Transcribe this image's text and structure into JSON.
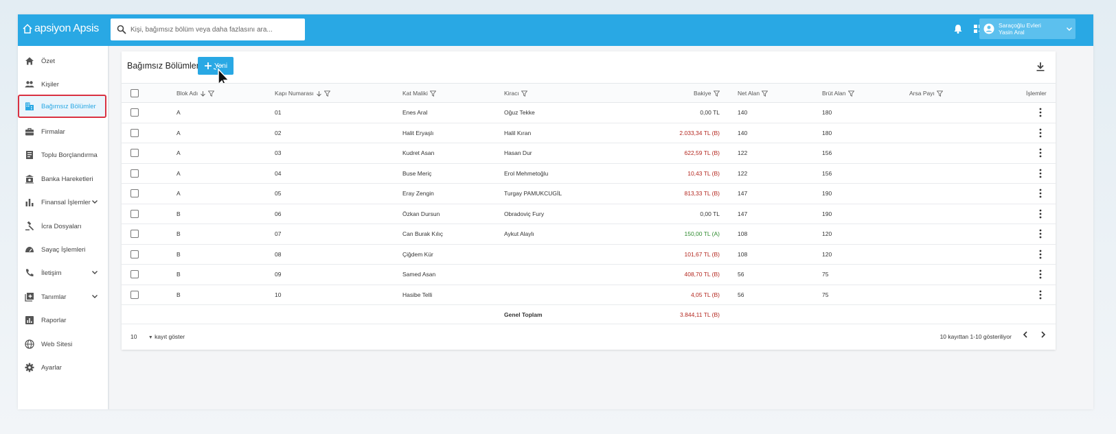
{
  "header": {
    "logo": "apsiyon Apsis",
    "search_placeholder": "Kişi, bağımsız bölüm veya daha fazlasını ara...",
    "user": {
      "site": "Saraçoğlu Evleri",
      "name": "Yasin Aral"
    }
  },
  "sidebar": {
    "items": [
      {
        "label": "Özet",
        "icon": "home-icon"
      },
      {
        "label": "Kişiler",
        "icon": "people-icon"
      },
      {
        "label": "Bağımsız Bölümler",
        "icon": "building-icon",
        "active": true
      },
      {
        "label": "Firmalar",
        "icon": "briefcase-icon"
      },
      {
        "label": "Toplu Borçlandırma",
        "icon": "ledger-icon"
      },
      {
        "label": "Banka Hareketleri",
        "icon": "bank-icon"
      },
      {
        "label": "Finansal İşlemler",
        "icon": "bar-chart-icon",
        "expandable": true
      },
      {
        "label": "İcra Dosyaları",
        "icon": "gavel-icon"
      },
      {
        "label": "Sayaç İşlemleri",
        "icon": "meter-icon"
      },
      {
        "label": "İletişim",
        "icon": "phone-icon",
        "expandable": true
      },
      {
        "label": "Tanımlar",
        "icon": "add-box-icon",
        "expandable": true
      },
      {
        "label": "Raporlar",
        "icon": "report-icon"
      },
      {
        "label": "Web Sitesi",
        "icon": "globe-icon"
      },
      {
        "label": "Ayarlar",
        "icon": "gear-icon"
      }
    ]
  },
  "main": {
    "title": "Bağımsız Bölümler",
    "new_button": "Yeni",
    "columns": {
      "blok": "Blok Adı",
      "kapi": "Kapı Numarası",
      "malik": "Kat Maliki",
      "kiraci": "Kiracı",
      "bakiye": "Bakiye",
      "net": "Net Alan",
      "brut": "Brüt Alan",
      "arsa": "Arsa Payı",
      "islemler": "İşlemler"
    },
    "rows": [
      {
        "blok": "A",
        "kapi": "01",
        "malik": "Enes Aral",
        "kiraci": "Oğuz Tekke",
        "bakiye": "0,00 TL",
        "status": "zero",
        "net": "140",
        "brut": "180"
      },
      {
        "blok": "A",
        "kapi": "02",
        "malik": "Halit Eryaşlı",
        "kiraci": "Halil Kıran",
        "bakiye": "2.033,34 TL (B)",
        "status": "debt",
        "net": "140",
        "brut": "180"
      },
      {
        "blok": "A",
        "kapi": "03",
        "malik": "Kudret Asan",
        "kiraci": "Hasan Dur",
        "bakiye": "622,59 TL (B)",
        "status": "debt",
        "net": "122",
        "brut": "156"
      },
      {
        "blok": "A",
        "kapi": "04",
        "malik": "Buse Meriç",
        "kiraci": "Erol Mehmetoğlu",
        "bakiye": "10,43 TL (B)",
        "status": "debt",
        "net": "122",
        "brut": "156"
      },
      {
        "blok": "A",
        "kapi": "05",
        "malik": "Eray Zengin",
        "kiraci": "Turgay PAMUKCUGİL",
        "bakiye": "813,33 TL (B)",
        "status": "debt",
        "net": "147",
        "brut": "190"
      },
      {
        "blok": "B",
        "kapi": "06",
        "malik": "Özkan Dursun",
        "kiraci": "Obradoviç Fury",
        "bakiye": "0,00 TL",
        "status": "zero",
        "net": "147",
        "brut": "190"
      },
      {
        "blok": "B",
        "kapi": "07",
        "malik": "Can Burak Kılıç",
        "kiraci": "Aykut Alaylı",
        "bakiye": "150,00 TL (A)",
        "status": "credit",
        "net": "108",
        "brut": "120"
      },
      {
        "blok": "B",
        "kapi": "08",
        "malik": "Çiğdem Kür",
        "kiraci": "",
        "bakiye": "101,67 TL (B)",
        "status": "debt",
        "net": "108",
        "brut": "120"
      },
      {
        "blok": "B",
        "kapi": "09",
        "malik": "Samed Asan",
        "kiraci": "",
        "bakiye": "408,70 TL (B)",
        "status": "debt",
        "net": "56",
        "brut": "75"
      },
      {
        "blok": "B",
        "kapi": "10",
        "malik": "Hasibe Telli",
        "kiraci": "",
        "bakiye": "4,05 TL (B)",
        "status": "debt",
        "net": "56",
        "brut": "75"
      }
    ],
    "total": {
      "label": "Genel Toplam",
      "value": "3.844,11 TL (B)"
    },
    "footer": {
      "page_size": "10",
      "page_size_label": "kayıt göster",
      "range": "10 kayıttan 1-10 gösteriliyor"
    }
  },
  "colors": {
    "primary": "#29a8e4",
    "debt": "#b3261e",
    "credit": "#2e8b2e",
    "active_outline": "#d93040"
  }
}
